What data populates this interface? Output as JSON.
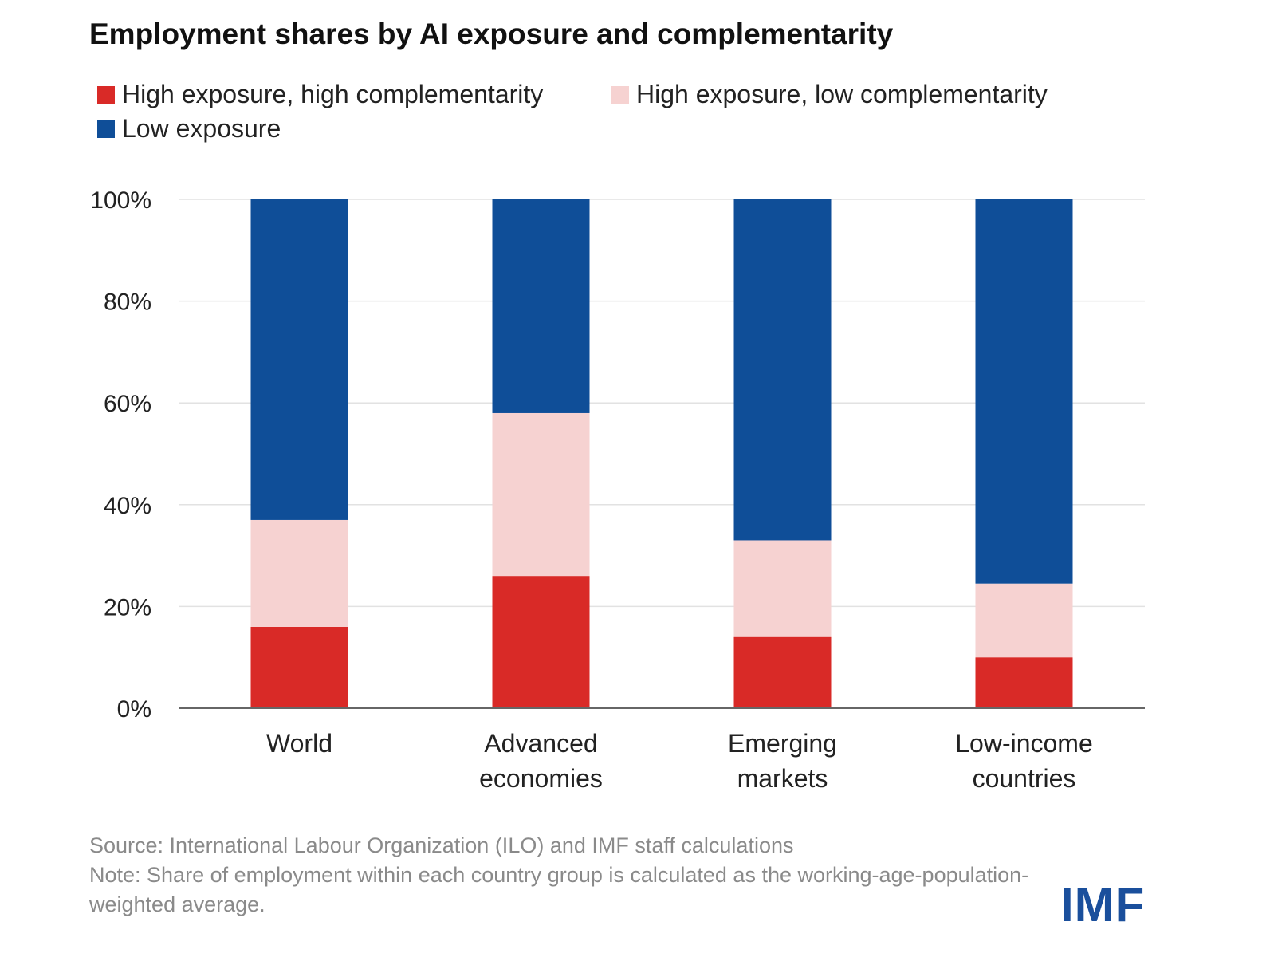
{
  "chart_data": {
    "type": "bar",
    "stacked": true,
    "title": "Employment shares by AI exposure and complementarity",
    "categories": [
      [
        "World"
      ],
      [
        "Advanced",
        "economies"
      ],
      [
        "Emerging",
        "markets"
      ],
      [
        "Low-income",
        "countries"
      ]
    ],
    "series": [
      {
        "name": "High exposure, high complementarity",
        "color": "#d92a27",
        "values": [
          16,
          26,
          14,
          10
        ]
      },
      {
        "name": "High exposure, low complementarity",
        "color": "#f6d2d1",
        "values": [
          21,
          32,
          19,
          14.5
        ]
      },
      {
        "name": "Low exposure",
        "color": "#0f4e98",
        "values": [
          63,
          42,
          67,
          75.5
        ]
      }
    ],
    "yticks": [
      "0%",
      "20%",
      "40%",
      "60%",
      "80%",
      "100%"
    ],
    "ylim": [
      0,
      100
    ],
    "grid": true,
    "legend_position": "top-left"
  },
  "source": "Source: International Labour Organization (ILO) and IMF staff calculations",
  "note": "Note: Share of employment within each country group is calculated as the working-age-population-weighted average.",
  "logo": "IMF"
}
